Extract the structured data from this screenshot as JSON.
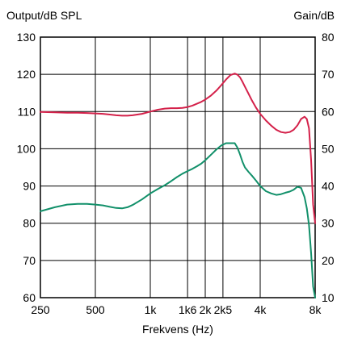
{
  "chart_data": {
    "type": "line",
    "x_scale": "log",
    "xlim": [
      250,
      8000
    ],
    "xlabel": "Frekvens (Hz)",
    "ylabel_left": "Output/dB SPL",
    "ylabel_right": "Gain/dB",
    "ylim_left": [
      60,
      130
    ],
    "ylim_right": [
      10,
      80
    ],
    "left_ticks": [
      "60",
      "70",
      "80",
      "90",
      "100",
      "110",
      "120",
      "130"
    ],
    "right_ticks": [
      "10",
      "20",
      "30",
      "40",
      "50",
      "60",
      "70",
      "80"
    ],
    "x_ticks": [
      {
        "value": 250,
        "label": "250"
      },
      {
        "value": 500,
        "label": "500"
      },
      {
        "value": 1000,
        "label": "1k"
      },
      {
        "value": 1600,
        "label": "1k6"
      },
      {
        "value": 2000,
        "label": "2k"
      },
      {
        "value": 2500,
        "label": "2k5"
      },
      {
        "value": 4000,
        "label": "4k"
      },
      {
        "value": 8000,
        "label": "8k"
      }
    ],
    "grid": true,
    "series": [
      {
        "color": "#d4214a",
        "x": [
          250,
          300,
          350,
          400,
          450,
          500,
          550,
          600,
          650,
          700,
          750,
          800,
          900,
          1000,
          1100,
          1200,
          1300,
          1400,
          1500,
          1600,
          1700,
          1800,
          1900,
          2000,
          2150,
          2300,
          2450,
          2600,
          2750,
          2900,
          3000,
          3100,
          3200,
          3300,
          3450,
          3600,
          3800,
          4000,
          4300,
          4600,
          4900,
          5200,
          5500,
          5800,
          6100,
          6400,
          6700,
          7000,
          7200,
          7400,
          7600,
          7800,
          8000
        ],
        "y": [
          109.9,
          109.8,
          109.7,
          109.7,
          109.6,
          109.5,
          109.4,
          109.2,
          109.0,
          108.9,
          108.9,
          109.0,
          109.4,
          110.0,
          110.5,
          110.8,
          110.9,
          110.9,
          111.0,
          111.2,
          111.6,
          112.1,
          112.6,
          113.2,
          114.3,
          115.6,
          117.1,
          118.6,
          119.8,
          120.2,
          119.9,
          119.2,
          118.0,
          116.7,
          114.8,
          113.0,
          111.0,
          109.4,
          107.6,
          106.2,
          105.1,
          104.5,
          104.3,
          104.5,
          105.1,
          106.3,
          108.0,
          108.6,
          108.0,
          105.5,
          97.0,
          85.0,
          80.0
        ]
      },
      {
        "color": "#12906a",
        "x": [
          250,
          300,
          350,
          400,
          450,
          500,
          550,
          600,
          650,
          700,
          750,
          800,
          900,
          1000,
          1100,
          1200,
          1300,
          1400,
          1500,
          1600,
          1700,
          1800,
          1900,
          2000,
          2150,
          2300,
          2450,
          2600,
          2750,
          2900,
          3000,
          3100,
          3200,
          3300,
          3450,
          3600,
          3800,
          4000,
          4300,
          4600,
          4900,
          5200,
          5500,
          5800,
          6100,
          6400,
          6700,
          7000,
          7200,
          7400,
          7600,
          7800,
          8000
        ],
        "y": [
          83.2,
          84.3,
          85.0,
          85.2,
          85.2,
          85.0,
          84.8,
          84.4,
          84.1,
          84.0,
          84.3,
          84.9,
          86.4,
          88.0,
          89.2,
          90.2,
          91.3,
          92.4,
          93.3,
          94.0,
          94.6,
          95.3,
          96.0,
          96.9,
          98.4,
          99.8,
          100.9,
          101.5,
          101.5,
          101.5,
          100.3,
          98.5,
          96.5,
          95.0,
          93.8,
          92.8,
          91.4,
          90.0,
          88.6,
          88.0,
          87.6,
          87.8,
          88.2,
          88.5,
          89.0,
          89.8,
          89.5,
          87.0,
          84.0,
          79.5,
          72.0,
          63.0,
          60.0
        ]
      }
    ]
  }
}
